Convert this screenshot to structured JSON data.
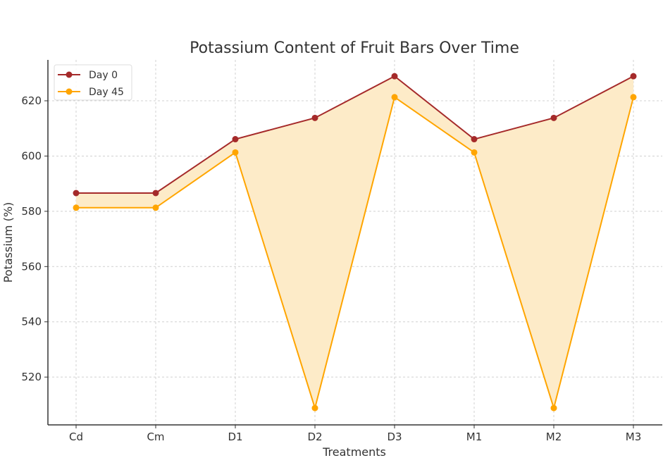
{
  "chart_data": {
    "type": "line",
    "title": "Potassium Content of Fruit Bars Over Time",
    "xlabel": "Treatments",
    "ylabel": "Potassium (%)",
    "categories": [
      "Cd",
      "Cm",
      "D1",
      "D2",
      "D3",
      "M1",
      "M2",
      "M3"
    ],
    "series": [
      {
        "name": "Day 0",
        "color": "#a52a2a",
        "values": [
          586.6,
          586.6,
          606.1,
          613.8,
          628.9,
          606.1,
          613.8,
          628.9
        ]
      },
      {
        "name": "Day 45",
        "color": "#ffa500",
        "values": [
          581.3,
          581.3,
          601.3,
          508.8,
          621.3,
          601.3,
          508.8,
          621.3
        ]
      }
    ],
    "fill_between_color": "#fdebc8",
    "ylim": [
      502.7,
      634.8
    ],
    "yticks": [
      520,
      540,
      560,
      580,
      600,
      620
    ],
    "grid": true,
    "legend_position": "top-left"
  }
}
